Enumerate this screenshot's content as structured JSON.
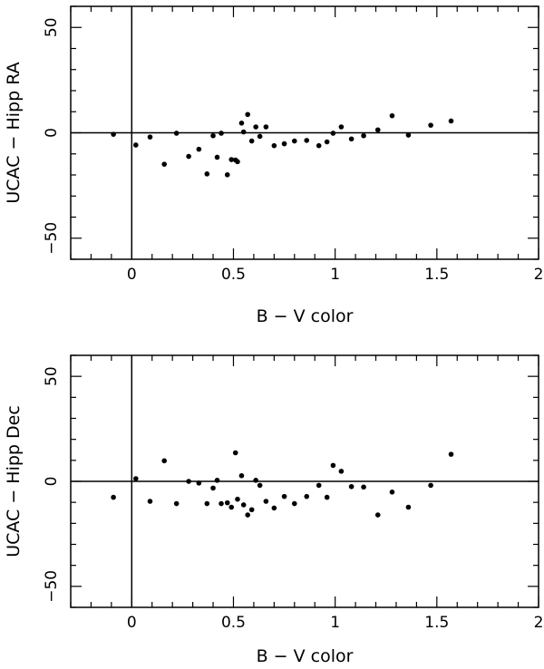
{
  "chart_data": [
    {
      "type": "scatter",
      "title": "",
      "xlabel": "B − V color",
      "ylabel": "UCAC − Hipp RA",
      "xlim": [
        -0.3,
        2.0
      ],
      "ylim": [
        -60,
        60
      ],
      "xticks": [
        0,
        0.5,
        1,
        1.5,
        2
      ],
      "xtick_labels": [
        "0",
        "0.5",
        "1",
        "1.5",
        "2"
      ],
      "yticks": [
        -50,
        0,
        50
      ],
      "ytick_labels": [
        "−50",
        "0",
        "50"
      ],
      "reference_lines": {
        "x": 0,
        "y": 0
      },
      "grid": false,
      "points": [
        [
          -0.09,
          -0.7
        ],
        [
          0.02,
          -5.8
        ],
        [
          0.09,
          -2.0
        ],
        [
          0.16,
          -14.9
        ],
        [
          0.22,
          -0.2
        ],
        [
          0.28,
          -11.2
        ],
        [
          0.33,
          -7.8
        ],
        [
          0.37,
          -19.5
        ],
        [
          0.4,
          -1.4
        ],
        [
          0.42,
          -11.6
        ],
        [
          0.44,
          -0.2
        ],
        [
          0.47,
          -19.9
        ],
        [
          0.49,
          -12.7
        ],
        [
          0.51,
          -12.9
        ],
        [
          0.52,
          -13.7
        ],
        [
          0.54,
          4.6
        ],
        [
          0.55,
          0.4
        ],
        [
          0.57,
          8.7
        ],
        [
          0.59,
          -3.9
        ],
        [
          0.61,
          2.8
        ],
        [
          0.63,
          -1.7
        ],
        [
          0.66,
          2.8
        ],
        [
          0.7,
          -6.1
        ],
        [
          0.75,
          -5.2
        ],
        [
          0.8,
          -3.9
        ],
        [
          0.86,
          -3.6
        ],
        [
          0.92,
          -6.1
        ],
        [
          0.96,
          -4.3
        ],
        [
          0.99,
          -0.2
        ],
        [
          1.03,
          2.8
        ],
        [
          1.08,
          -2.9
        ],
        [
          1.14,
          -1.4
        ],
        [
          1.21,
          1.4
        ],
        [
          1.28,
          8.1
        ],
        [
          1.36,
          -1.1
        ],
        [
          1.47,
          3.6
        ],
        [
          1.57,
          5.6
        ]
      ]
    },
    {
      "type": "scatter",
      "title": "",
      "xlabel": "B − V color",
      "ylabel": "UCAC − Hipp Dec",
      "xlim": [
        -0.3,
        2.0
      ],
      "ylim": [
        -60,
        60
      ],
      "xticks": [
        0,
        0.5,
        1,
        1.5,
        2
      ],
      "xtick_labels": [
        "0",
        "0.5",
        "1",
        "1.5",
        "2"
      ],
      "yticks": [
        -50,
        0,
        50
      ],
      "ytick_labels": [
        "−50",
        "0",
        "50"
      ],
      "reference_lines": {
        "x": 0,
        "y": 0
      },
      "grid": false,
      "points": [
        [
          -0.09,
          -7.6
        ],
        [
          0.02,
          1.3
        ],
        [
          0.09,
          -9.5
        ],
        [
          0.16,
          9.8
        ],
        [
          0.22,
          -10.6
        ],
        [
          0.28,
          0.0
        ],
        [
          0.33,
          -0.8
        ],
        [
          0.37,
          -10.6
        ],
        [
          0.4,
          -3.2
        ],
        [
          0.42,
          0.5
        ],
        [
          0.44,
          -10.6
        ],
        [
          0.47,
          -10.2
        ],
        [
          0.49,
          -12.3
        ],
        [
          0.51,
          13.6
        ],
        [
          0.52,
          -8.5
        ],
        [
          0.54,
          2.7
        ],
        [
          0.55,
          -11.2
        ],
        [
          0.57,
          -16.0
        ],
        [
          0.59,
          -13.5
        ],
        [
          0.61,
          0.5
        ],
        [
          0.63,
          -1.9
        ],
        [
          0.66,
          -9.5
        ],
        [
          0.7,
          -12.7
        ],
        [
          0.75,
          -7.2
        ],
        [
          0.8,
          -10.6
        ],
        [
          0.86,
          -7.2
        ],
        [
          0.92,
          -1.9
        ],
        [
          0.96,
          -7.6
        ],
        [
          0.99,
          7.6
        ],
        [
          1.03,
          4.8
        ],
        [
          1.08,
          -2.5
        ],
        [
          1.14,
          -2.7
        ],
        [
          1.21,
          -16.0
        ],
        [
          1.28,
          -5.1
        ],
        [
          1.36,
          -12.3
        ],
        [
          1.47,
          -1.9
        ],
        [
          1.57,
          12.9
        ]
      ]
    }
  ]
}
